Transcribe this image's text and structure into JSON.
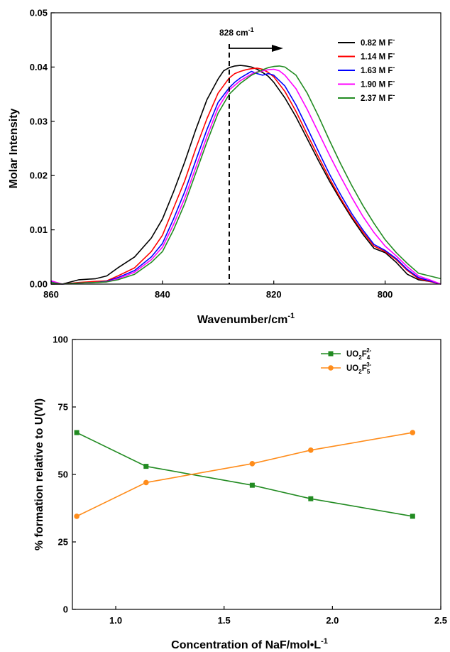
{
  "chart_data": [
    {
      "type": "line",
      "title": "",
      "xlabel": "Wavenumber/cm",
      "xlabel_sup": "-1",
      "ylabel": "Molar Intensity",
      "xlim": [
        860,
        790
      ],
      "ylim": [
        0,
        0.05
      ],
      "xticks": [
        860,
        840,
        820,
        800
      ],
      "yticks": [
        0.0,
        0.01,
        0.02,
        0.03,
        0.04,
        0.05
      ],
      "ytick_labels": [
        "0.00",
        "0.01",
        "0.02",
        "0.03",
        "0.04",
        "0.05"
      ],
      "grid": false,
      "legend_position": "top-right",
      "annotation": {
        "text": "828 cm",
        "sup": "-1",
        "x": 828
      },
      "series": [
        {
          "name": "0.82 M F",
          "sup": "-",
          "color": "#000000",
          "x": [
            860,
            858,
            855,
            852,
            850,
            848,
            845,
            842,
            840,
            838,
            836,
            834,
            832,
            830,
            829,
            828,
            827,
            826,
            825,
            824,
            823,
            822,
            821,
            820,
            818,
            816,
            814,
            812,
            810,
            808,
            806,
            804,
            802,
            800,
            798,
            796,
            794,
            792,
            790
          ],
          "y": [
            0.0,
            0.0,
            0.0008,
            0.001,
            0.0015,
            0.003,
            0.005,
            0.0085,
            0.012,
            0.017,
            0.0225,
            0.0285,
            0.034,
            0.0378,
            0.0393,
            0.0399,
            0.0402,
            0.0403,
            0.0402,
            0.04,
            0.0396,
            0.039,
            0.0383,
            0.0372,
            0.0343,
            0.0308,
            0.0268,
            0.0228,
            0.019,
            0.0155,
            0.0122,
            0.0092,
            0.0066,
            0.0058,
            0.004,
            0.0018,
            0.0008,
            0.0005,
            0.0
          ]
        },
        {
          "name": "1.14 M F",
          "sup": "-",
          "color": "#ff0000",
          "x": [
            860,
            858,
            855,
            852,
            850,
            848,
            845,
            842,
            840,
            838,
            836,
            834,
            832,
            830,
            828,
            827,
            826,
            825,
            824,
            823,
            822,
            821,
            820,
            818,
            816,
            814,
            812,
            810,
            808,
            806,
            804,
            802,
            800,
            798,
            796,
            794,
            792,
            790
          ],
          "y": [
            0.0005,
            0.0,
            0.0003,
            0.0005,
            0.0006,
            0.0015,
            0.003,
            0.006,
            0.009,
            0.014,
            0.019,
            0.025,
            0.0305,
            0.0352,
            0.038,
            0.0388,
            0.0392,
            0.0395,
            0.0397,
            0.0398,
            0.0396,
            0.039,
            0.0382,
            0.0355,
            0.0318,
            0.0276,
            0.0235,
            0.0195,
            0.0158,
            0.0125,
            0.0096,
            0.007,
            0.006,
            0.0045,
            0.0025,
            0.001,
            0.0005,
            0.0
          ]
        },
        {
          "name": "1.63 M F",
          "sup": "-",
          "color": "#0000ff",
          "x": [
            860,
            858,
            855,
            852,
            850,
            848,
            845,
            842,
            840,
            838,
            836,
            834,
            832,
            830,
            828,
            827,
            826,
            825,
            824,
            823,
            822,
            821,
            820,
            818,
            816,
            814,
            812,
            810,
            808,
            806,
            804,
            802,
            800,
            798,
            796,
            794,
            792,
            790
          ],
          "y": [
            0.0004,
            0.0,
            0.0002,
            0.0003,
            0.0005,
            0.0012,
            0.0025,
            0.005,
            0.0075,
            0.012,
            0.017,
            0.0228,
            0.0285,
            0.0335,
            0.0362,
            0.0372,
            0.038,
            0.0386,
            0.0392,
            0.0388,
            0.0385,
            0.0388,
            0.0385,
            0.0365,
            0.033,
            0.0288,
            0.0245,
            0.0203,
            0.0165,
            0.013,
            0.01,
            0.0073,
            0.0062,
            0.0047,
            0.0027,
            0.0012,
            0.0006,
            0.0
          ]
        },
        {
          "name": "1.90 M F",
          "sup": "-",
          "color": "#ff00ff",
          "x": [
            860,
            858,
            855,
            852,
            850,
            848,
            845,
            842,
            840,
            838,
            836,
            834,
            832,
            830,
            828,
            826,
            824,
            823,
            822,
            821,
            820,
            819,
            818,
            816,
            814,
            812,
            810,
            808,
            806,
            804,
            802,
            800,
            798,
            796,
            794,
            792,
            790
          ],
          "y": [
            0.0006,
            0.0,
            0.0002,
            0.0003,
            0.0004,
            0.001,
            0.0022,
            0.0045,
            0.0068,
            0.011,
            0.0158,
            0.0215,
            0.0272,
            0.0325,
            0.0358,
            0.0375,
            0.0387,
            0.0391,
            0.0393,
            0.0395,
            0.0396,
            0.0393,
            0.0385,
            0.036,
            0.0322,
            0.028,
            0.0238,
            0.0198,
            0.016,
            0.0125,
            0.0095,
            0.007,
            0.0052,
            0.0032,
            0.0015,
            0.0008,
            0.0
          ]
        },
        {
          "name": "2.37 M F",
          "sup": "-",
          "color": "#228b22",
          "x": [
            860,
            858,
            855,
            852,
            850,
            848,
            845,
            842,
            840,
            838,
            836,
            834,
            832,
            830,
            828,
            826,
            824,
            822,
            821,
            820,
            819,
            818,
            816,
            814,
            812,
            810,
            808,
            806,
            804,
            802,
            800,
            798,
            796,
            794,
            792,
            790
          ],
          "y": [
            0.0003,
            0.0,
            0.0002,
            0.0003,
            0.0004,
            0.0008,
            0.0018,
            0.004,
            0.006,
            0.01,
            0.0148,
            0.0205,
            0.0262,
            0.0315,
            0.035,
            0.037,
            0.0385,
            0.0395,
            0.0399,
            0.0401,
            0.0402,
            0.04,
            0.0385,
            0.0352,
            0.031,
            0.0265,
            0.0222,
            0.0182,
            0.0145,
            0.0112,
            0.0082,
            0.0058,
            0.0038,
            0.002,
            0.0015,
            0.001
          ]
        }
      ]
    },
    {
      "type": "line",
      "title": "",
      "xlabel": "Concentration of NaF/mol•L",
      "xlabel_sup": "-1",
      "ylabel": "% formation relative to U(VI)",
      "xlim": [
        0.8,
        2.5
      ],
      "ylim": [
        0,
        100
      ],
      "xticks": [
        1.0,
        1.5,
        2.0,
        2.5
      ],
      "xtick_labels": [
        "1.0",
        "1.5",
        "2.0",
        "2.5"
      ],
      "yticks": [
        0,
        25,
        50,
        75,
        100
      ],
      "ytick_labels": [
        "0",
        "25",
        "50",
        "75",
        "100"
      ],
      "grid": false,
      "legend_position": "top-right",
      "series": [
        {
          "name": "UO",
          "sub1": "2",
          "mid": "F",
          "sub2": "4",
          "sup": "2-",
          "color": "#228b22",
          "marker": "square",
          "x": [
            0.82,
            1.14,
            1.63,
            1.9,
            2.37
          ],
          "y": [
            65.5,
            53.0,
            46.0,
            41.0,
            34.5
          ]
        },
        {
          "name": "UO",
          "sub1": "2",
          "mid": "F",
          "sub2": "5",
          "sup": "3-",
          "color": "#ff8c1a",
          "marker": "circle",
          "x": [
            0.82,
            1.14,
            1.63,
            1.9,
            2.37
          ],
          "y": [
            34.5,
            47.0,
            54.0,
            59.0,
            65.5
          ]
        }
      ]
    }
  ]
}
